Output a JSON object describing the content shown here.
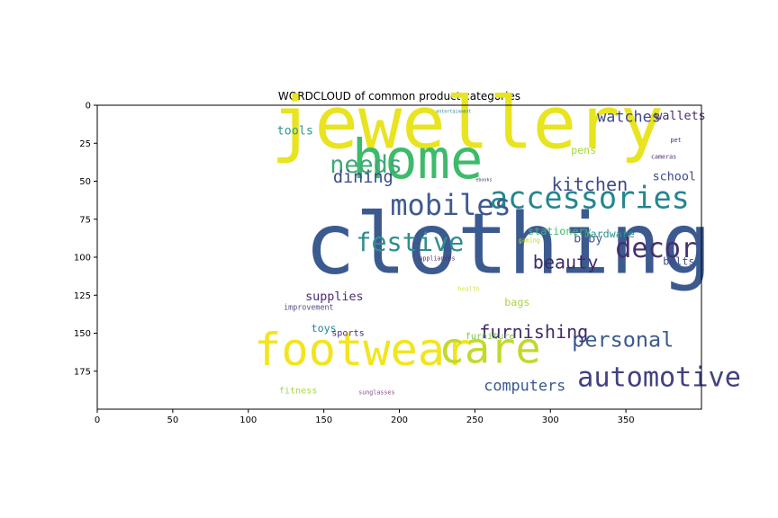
{
  "chart_data": {
    "type": "wordcloud",
    "title": "WORDCLOUD of common product categories",
    "xlim": [
      0,
      400
    ],
    "ylim": [
      200,
      0
    ],
    "xticks": [
      0,
      50,
      100,
      150,
      200,
      250,
      300,
      350
    ],
    "yticks": [
      0,
      25,
      50,
      75,
      100,
      125,
      150,
      175
    ],
    "grid": false,
    "words": [
      {
        "text": "jewellery",
        "x": 245,
        "y": 15,
        "size": 48,
        "color": "#e8e41f",
        "rotate": 0
      },
      {
        "text": "clothing",
        "x": 272,
        "y": 95,
        "size": 56,
        "color": "#3b5a8f",
        "rotate": 0
      },
      {
        "text": "home",
        "x": 212,
        "y": 38,
        "size": 36,
        "color": "#3dbb6b",
        "rotate": 0
      },
      {
        "text": "footwear",
        "x": 176,
        "y": 163,
        "size": 30,
        "color": "#f2e51d",
        "rotate": 0
      },
      {
        "text": "care",
        "x": 260,
        "y": 162,
        "size": 28,
        "color": "#c3d92b",
        "rotate": 0
      },
      {
        "text": "accessories",
        "x": 326,
        "y": 62,
        "size": 20,
        "color": "#24868e",
        "rotate": 0
      },
      {
        "text": "mobiles",
        "x": 234,
        "y": 67,
        "size": 19,
        "color": "#3d5b8f",
        "rotate": 0
      },
      {
        "text": "festive",
        "x": 207,
        "y": 91,
        "size": 17,
        "color": "#2f8e8d",
        "rotate": 0
      },
      {
        "text": "decor",
        "x": 370,
        "y": 95,
        "size": 18,
        "color": "#462f6e",
        "rotate": 0
      },
      {
        "text": "automotive",
        "x": 372,
        "y": 180,
        "size": 18,
        "color": "#41427f",
        "rotate": 0
      },
      {
        "text": "needs",
        "x": 178,
        "y": 40,
        "size": 16,
        "color": "#3ea876",
        "rotate": 0
      },
      {
        "text": "personal",
        "x": 348,
        "y": 155,
        "size": 14,
        "color": "#3b5a8f",
        "rotate": 0
      },
      {
        "text": "furnishing",
        "x": 289,
        "y": 150,
        "size": 12,
        "color": "#432b67",
        "rotate": 0
      },
      {
        "text": "beauty",
        "x": 310,
        "y": 104,
        "size": 12,
        "color": "#412b67",
        "rotate": 0
      },
      {
        "text": "kitchen",
        "x": 326,
        "y": 53,
        "size": 12,
        "color": "#3f4a86",
        "rotate": 0
      },
      {
        "text": "dining",
        "x": 176,
        "y": 48,
        "size": 11,
        "color": "#3b4a86",
        "rotate": 0
      },
      {
        "text": "watches",
        "x": 352,
        "y": 8,
        "size": 10,
        "color": "#3f4a86",
        "rotate": 0
      },
      {
        "text": "computers",
        "x": 283,
        "y": 185,
        "size": 10,
        "color": "#3b5a8f",
        "rotate": 0
      },
      {
        "text": "wallets",
        "x": 386,
        "y": 7,
        "size": 8,
        "color": "#462f6e",
        "rotate": 0
      },
      {
        "text": "tools",
        "x": 131,
        "y": 17,
        "size": 8,
        "color": "#2f9a8a",
        "rotate": 0
      },
      {
        "text": "pens",
        "x": 322,
        "y": 30,
        "size": 7,
        "color": "#a8d63c",
        "rotate": 0
      },
      {
        "text": "school",
        "x": 382,
        "y": 47,
        "size": 8,
        "color": "#3d4a86",
        "rotate": 0
      },
      {
        "text": "baby",
        "x": 325,
        "y": 88,
        "size": 8,
        "color": "#3e5a8f",
        "rotate": 0
      },
      {
        "text": "hardware",
        "x": 339,
        "y": 85,
        "size": 7,
        "color": "#2f8e8d",
        "rotate": 0
      },
      {
        "text": "belts",
        "x": 385,
        "y": 103,
        "size": 7,
        "color": "#3d4a86",
        "rotate": 0
      },
      {
        "text": "stationery",
        "x": 306,
        "y": 83,
        "size": 7,
        "color": "#41b76c",
        "rotate": 0
      },
      {
        "text": "supplies",
        "x": 157,
        "y": 126,
        "size": 8,
        "color": "#4a2c6f",
        "rotate": 0
      },
      {
        "text": "bags",
        "x": 278,
        "y": 130,
        "size": 7,
        "color": "#a8d63c",
        "rotate": 0
      },
      {
        "text": "improvement",
        "x": 140,
        "y": 133,
        "size": 5,
        "color": "#4f4f86",
        "rotate": 0
      },
      {
        "text": "toys",
        "x": 150,
        "y": 147,
        "size": 7,
        "color": "#24868e",
        "rotate": 0
      },
      {
        "text": "sports",
        "x": 166,
        "y": 150,
        "size": 6,
        "color": "#4a2c6f",
        "rotate": 0
      },
      {
        "text": "furniture",
        "x": 260,
        "y": 152,
        "size": 6,
        "color": "#7ec94c",
        "rotate": 0
      },
      {
        "text": "fitness",
        "x": 133,
        "y": 188,
        "size": 6,
        "color": "#a6d84a",
        "rotate": 0
      },
      {
        "text": "sunglasses",
        "x": 185,
        "y": 189,
        "size": 4,
        "color": "#8a4a8a",
        "rotate": 0
      },
      {
        "text": "appliances",
        "x": 225,
        "y": 101,
        "size": 4,
        "color": "#5b2c6f",
        "rotate": 0
      },
      {
        "text": "gaming",
        "x": 286,
        "y": 89,
        "size": 4,
        "color": "#c3d92b",
        "rotate": 0
      },
      {
        "text": "health",
        "x": 246,
        "y": 121,
        "size": 4,
        "color": "#d6e34e",
        "rotate": 0
      },
      {
        "text": "entertainment",
        "x": 236,
        "y": 4,
        "size": 3,
        "color": "#24868e",
        "rotate": 0
      },
      {
        "text": "ebooks",
        "x": 256,
        "y": 49,
        "size": 3,
        "color": "#4a2c6f",
        "rotate": 0
      },
      {
        "text": "pet",
        "x": 383,
        "y": 23,
        "size": 4,
        "color": "#4a2c6f",
        "rotate": 0
      },
      {
        "text": "cameras",
        "x": 375,
        "y": 34,
        "size": 4,
        "color": "#4a2c6f",
        "rotate": 0
      }
    ]
  }
}
